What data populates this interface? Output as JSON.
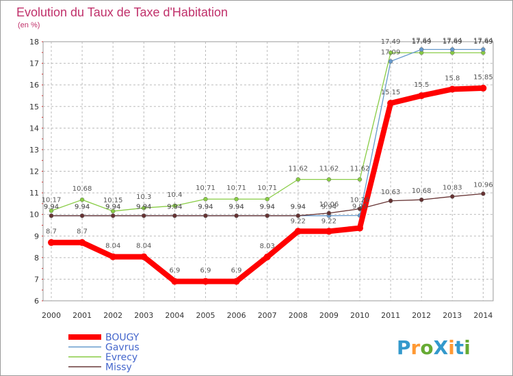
{
  "chart_data": {
    "type": "line",
    "title": "Evolution du Taux de Taxe d'Habitation",
    "subtitle": "(en %)",
    "x": [
      "2000",
      "2001",
      "2002",
      "2003",
      "2004",
      "2005",
      "2006",
      "2007",
      "2008",
      "2009",
      "2010",
      "2011",
      "2012",
      "2013",
      "2014"
    ],
    "ylim": [
      6,
      18
    ],
    "yticks": [
      6,
      7,
      8,
      9,
      10,
      11,
      12,
      13,
      14,
      15,
      16,
      17,
      18
    ],
    "grid": true,
    "legend_position": "bottom-left",
    "series": [
      {
        "name": "BOUGY",
        "color": "#ff0000",
        "values": [
          8.7,
          8.7,
          8.04,
          8.04,
          6.9,
          6.9,
          6.9,
          8.03,
          9.22,
          9.22,
          9.37,
          15.15,
          15.5,
          15.8,
          15.85
        ],
        "labels": [
          "8.7",
          "8.7",
          "8.04",
          "8.04",
          "6.9",
          "6.9",
          "6.9",
          "8.03",
          "9.22",
          "9.22",
          "",
          "15.15",
          "15.5",
          "15.8",
          "15.85"
        ]
      },
      {
        "name": "Gavrus",
        "color": "#6699cc",
        "values": [
          9.94,
          9.94,
          9.94,
          9.94,
          9.94,
          9.94,
          9.94,
          9.94,
          9.94,
          9.94,
          9.95,
          17.09,
          17.64,
          17.64,
          17.64
        ],
        "labels": [
          "9.94",
          "9.94",
          "9.94",
          "9.94",
          "9.94",
          "9.94",
          "9.94",
          "9.94",
          "9.94",
          "9.94",
          "9.95",
          "17.09",
          "17.64",
          "17.64",
          "17.64"
        ]
      },
      {
        "name": "Evrecy",
        "color": "#88cc44",
        "values": [
          10.17,
          10.68,
          10.15,
          10.3,
          10.4,
          10.71,
          10.71,
          10.71,
          11.62,
          11.62,
          11.62,
          17.49,
          17.49,
          17.49,
          17.49
        ],
        "labels": [
          "10.17",
          "10.68",
          "10.15",
          "10.3",
          "10.4",
          "10.71",
          "10.71",
          "10.71",
          "11.62",
          "11.62",
          "11.62",
          "17.49",
          "17.49",
          "17.49",
          "17.49"
        ]
      },
      {
        "name": "Missy",
        "color": "#663333",
        "values": [
          9.94,
          9.94,
          9.94,
          9.94,
          9.94,
          9.94,
          9.94,
          9.94,
          9.94,
          10.06,
          10.26,
          10.63,
          10.68,
          10.83,
          10.96
        ],
        "labels": [
          "9.94",
          "9.94",
          "9.94",
          "9.94",
          "9.94",
          "9.94",
          "9.94",
          "9.94",
          "9.94",
          "10.06",
          "10.26",
          "10.63",
          "10.68",
          "10.83",
          "10.96"
        ]
      }
    ]
  },
  "logo": {
    "text": "ProXiti"
  }
}
